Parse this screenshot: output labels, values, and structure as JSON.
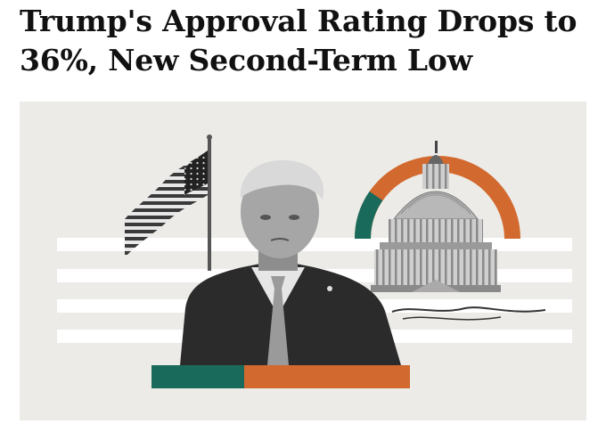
{
  "article": {
    "headline": "Trump's Approval Rating Drops to 36%, New Second-Term Low"
  },
  "hero_image": {
    "background_color": "#ecebe7",
    "accent_orange": "#d2692f",
    "accent_green": "#1a6a5c",
    "depicts": [
      "american-flag",
      "portrait",
      "capitol-dome",
      "approval-arc",
      "approval-bar"
    ],
    "approval_percent": 36
  }
}
